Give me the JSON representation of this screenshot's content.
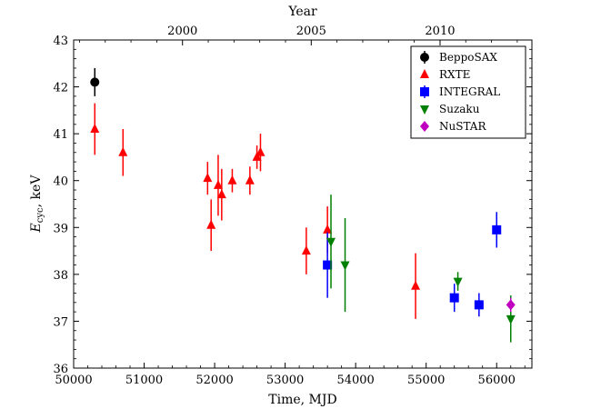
{
  "chart_data": {
    "type": "scatter",
    "title": "",
    "xlabel": "Time, MJD",
    "ylabel_main": "E",
    "ylabel_sub": "cyc",
    "ylabel_rest": ", keV",
    "top_axis_label": "Year",
    "xlim": [
      50000,
      56500
    ],
    "ylim": [
      36,
      43
    ],
    "x_ticks": [
      50000,
      51000,
      52000,
      53000,
      54000,
      55000,
      56000
    ],
    "y_ticks": [
      36,
      37,
      38,
      39,
      40,
      41,
      42,
      43
    ],
    "top_ticks": [
      {
        "label": "2000",
        "mjd": 51544
      },
      {
        "label": "2005",
        "mjd": 53370
      },
      {
        "label": "2010",
        "mjd": 55197
      }
    ],
    "legend_position": "top-right",
    "series": [
      {
        "name": "BeppoSAX",
        "marker": "circle",
        "color": "#000000",
        "points": [
          {
            "x": 50300,
            "y": 42.1,
            "err": 0.3
          }
        ]
      },
      {
        "name": "RXTE",
        "marker": "triangle-up",
        "color": "#ff0000",
        "points": [
          {
            "x": 50300,
            "y": 41.1,
            "err": 0.55
          },
          {
            "x": 50700,
            "y": 40.6,
            "err": 0.5
          },
          {
            "x": 51900,
            "y": 40.05,
            "err": 0.35
          },
          {
            "x": 51950,
            "y": 39.05,
            "err": 0.55
          },
          {
            "x": 52050,
            "y": 39.9,
            "err": 0.65
          },
          {
            "x": 52100,
            "y": 39.7,
            "err": 0.55
          },
          {
            "x": 52250,
            "y": 40.0,
            "err": 0.25
          },
          {
            "x": 52500,
            "y": 40.0,
            "err": 0.3
          },
          {
            "x": 52600,
            "y": 40.5,
            "err": 0.25
          },
          {
            "x": 52650,
            "y": 40.6,
            "err": 0.4
          },
          {
            "x": 53300,
            "y": 38.5,
            "err": 0.5
          },
          {
            "x": 53600,
            "y": 38.95,
            "err": 0.5
          },
          {
            "x": 54850,
            "y": 37.75,
            "err": 0.7
          }
        ]
      },
      {
        "name": "INTEGRAL",
        "marker": "square",
        "color": "#0000ff",
        "points": [
          {
            "x": 53600,
            "y": 38.2,
            "err": 0.7
          },
          {
            "x": 55400,
            "y": 37.5,
            "err": 0.3
          },
          {
            "x": 55750,
            "y": 37.35,
            "err": 0.25
          },
          {
            "x": 56000,
            "y": 38.95,
            "err": 0.38
          }
        ]
      },
      {
        "name": "Suzaku",
        "marker": "triangle-down",
        "color": "#008000",
        "points": [
          {
            "x": 53650,
            "y": 38.7,
            "err": 1.0
          },
          {
            "x": 53850,
            "y": 38.2,
            "err": 1.0
          },
          {
            "x": 55450,
            "y": 37.85,
            "err": 0.2
          },
          {
            "x": 56200,
            "y": 37.05,
            "err": 0.5
          }
        ]
      },
      {
        "name": "NuSTAR",
        "marker": "diamond",
        "color": "#bf00bf",
        "points": [
          {
            "x": 56200,
            "y": 37.35,
            "err": 0.15
          }
        ]
      }
    ]
  }
}
